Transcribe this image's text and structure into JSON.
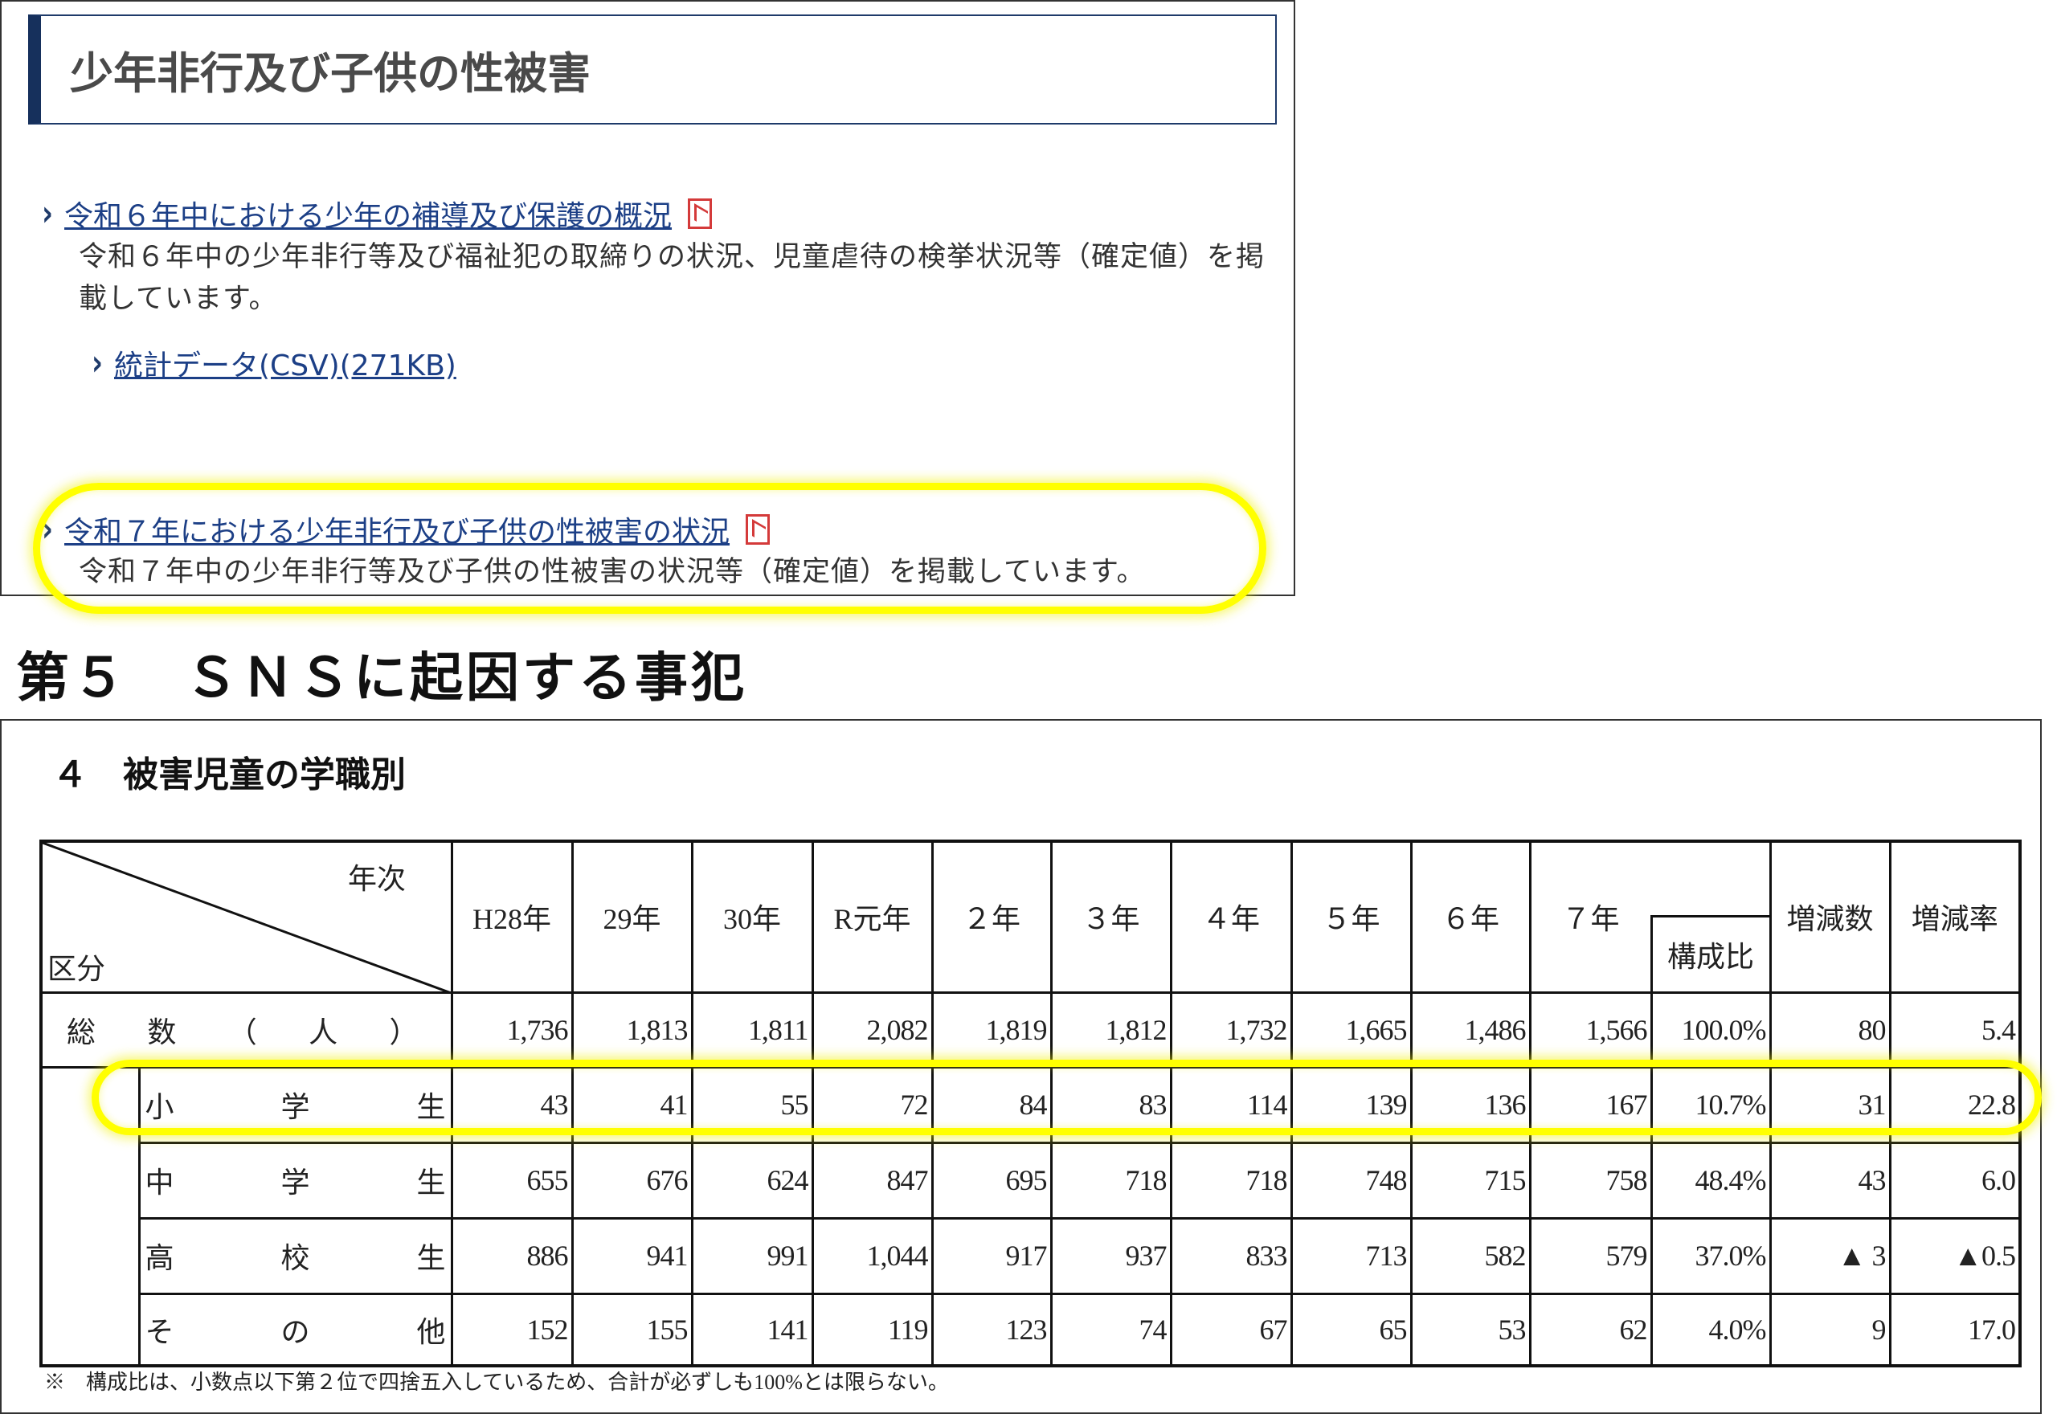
{
  "top_panel": {
    "title": "少年非行及び子供の性被害",
    "link1": {
      "label": "令和６年中における少年の補導及び保護の概況",
      "icon": "pdf-icon",
      "description": "令和６年中の少年非行等及び福祉犯の取締りの状況、児童虐待の検挙状況等（確定値）を掲載しています。"
    },
    "csv_link": "統計データ(CSV)(271KB)",
    "link2": {
      "label": "令和７年における少年非行及び子供の性被害の状況",
      "icon": "pdf-icon",
      "description": "令和７年中の少年非行等及び子供の性被害の状況等（確定値）を掲載しています。"
    }
  },
  "highlight_color": "#ffff00",
  "section_heading": "第５　ＳＮＳに起因する事犯",
  "table_section": {
    "subtitle": "４　被害児童の学職別",
    "header_year": "年次",
    "header_category": "区分",
    "years": [
      "H28年",
      "29年",
      "30年",
      "R元年",
      "２年",
      "３年",
      "４年",
      "５年",
      "６年",
      "７年"
    ],
    "ratio_header": "構成比",
    "change_count_header": "増減数",
    "change_rate_header": "増減率",
    "rows": [
      {
        "label": "総数（人）",
        "values": [
          "1,736",
          "1,813",
          "1,811",
          "2,082",
          "1,819",
          "1,812",
          "1,732",
          "1,665",
          "1,486",
          "1,566"
        ],
        "ratio": "100.0%",
        "change": "80",
        "rate": "5.4"
      },
      {
        "label": "小学生",
        "values": [
          "43",
          "41",
          "55",
          "72",
          "84",
          "83",
          "114",
          "139",
          "136",
          "167"
        ],
        "ratio": "10.7%",
        "change": "31",
        "rate": "22.8"
      },
      {
        "label": "中学生",
        "values": [
          "655",
          "676",
          "624",
          "847",
          "695",
          "718",
          "718",
          "748",
          "715",
          "758"
        ],
        "ratio": "48.4%",
        "change": "43",
        "rate": "6.0"
      },
      {
        "label": "高校生",
        "values": [
          "886",
          "941",
          "991",
          "1,044",
          "917",
          "937",
          "833",
          "713",
          "582",
          "579"
        ],
        "ratio": "37.0%",
        "change": "▲ 3",
        "rate": "▲0.5"
      },
      {
        "label": "その他",
        "values": [
          "152",
          "155",
          "141",
          "119",
          "123",
          "74",
          "67",
          "65",
          "53",
          "62"
        ],
        "ratio": "4.0%",
        "change": "9",
        "rate": "17.0"
      }
    ],
    "footnote": "※　構成比は、小数点以下第２位で四捨五入しているため、合計が必ずしも100%とは限らない。"
  }
}
